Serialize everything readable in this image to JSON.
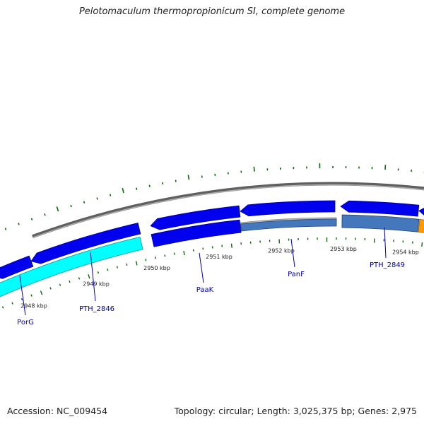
{
  "title": "Pelotomaculum thermopropionicum SI, complete genome",
  "accession": "Accession: NC_009454",
  "summary": "Topology: circular; Length: 3,025,375 bp; Genes: 2,975",
  "colors": {
    "forward_gene": "#0000ee",
    "reverse_gene": "#0000ee",
    "highlight_gene": "#00ffff",
    "rna_gene": "#4477bb",
    "pseudo_gene": "#bbbbbb",
    "orange_gene": "#ff9900",
    "backbone": "#808080",
    "tick": "#0a6a0a",
    "label": "#0000aa"
  },
  "kbp_labels": [
    "2948 kbp",
    "2949 kbp",
    "2950 kbp",
    "2951 kbp",
    "2952 kbp",
    "2953 kbp",
    "2954 kbp"
  ],
  "gene_labels": [
    "PorG",
    "PTH_2846",
    "PaaK",
    "PanF",
    "PTH_2849"
  ]
}
